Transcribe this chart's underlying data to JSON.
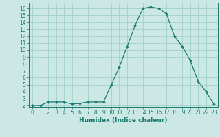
{
  "x": [
    0,
    1,
    2,
    3,
    4,
    5,
    6,
    7,
    8,
    9,
    10,
    11,
    12,
    13,
    14,
    15,
    16,
    17,
    18,
    19,
    20,
    21,
    22,
    23
  ],
  "y": [
    2.0,
    2.0,
    2.5,
    2.5,
    2.5,
    2.2,
    2.3,
    2.5,
    2.5,
    2.5,
    5.0,
    7.5,
    10.5,
    13.5,
    16.0,
    16.2,
    16.0,
    15.2,
    12.0,
    10.5,
    8.5,
    5.5,
    4.0,
    2.2
  ],
  "line_color": "#1a7a6e",
  "marker": "D",
  "marker_size": 1.8,
  "line_width": 0.9,
  "bg_color": "#cce8e4",
  "grid_color": "#99ccc7",
  "xlabel": "Humidex (Indice chaleur)",
  "xlim": [
    -0.5,
    23.5
  ],
  "ylim": [
    1.8,
    16.8
  ],
  "xticks": [
    0,
    1,
    2,
    3,
    4,
    5,
    6,
    7,
    8,
    9,
    10,
    11,
    12,
    13,
    14,
    15,
    16,
    17,
    18,
    19,
    20,
    21,
    22,
    23
  ],
  "yticks": [
    2,
    3,
    4,
    5,
    6,
    7,
    8,
    9,
    10,
    11,
    12,
    13,
    14,
    15,
    16
  ],
  "tick_fontsize": 5.5,
  "label_fontsize": 6.5
}
